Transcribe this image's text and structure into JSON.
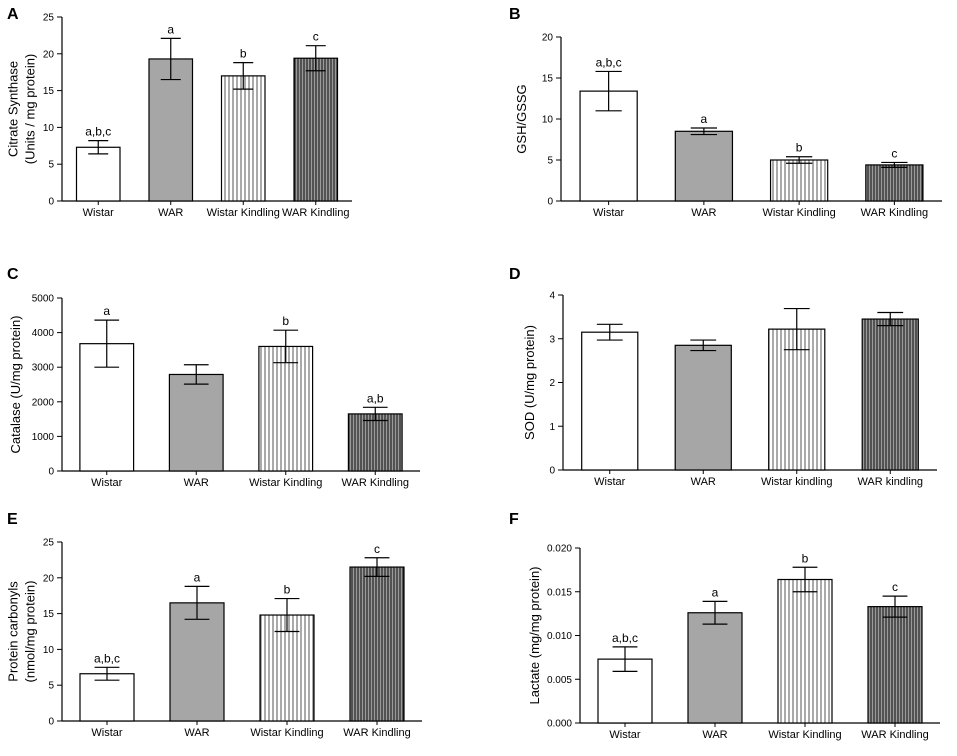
{
  "chart_data": [
    {
      "type": "bar",
      "panel": "A",
      "categories": [
        "Wistar",
        "WAR",
        "Wistar Kindling",
        "WAR Kindling"
      ],
      "values": [
        7.3,
        19.3,
        17.0,
        19.4
      ],
      "errors": [
        0.9,
        2.8,
        1.8,
        1.7
      ],
      "annotations": [
        "a,b,c",
        "a",
        "b",
        "c"
      ],
      "ylabel_lines": [
        "Citrate Synthase",
        "(Units / mg protein)"
      ],
      "ylim": [
        0,
        25
      ],
      "yticks": [
        "0",
        "5",
        "10",
        "15",
        "20",
        "25"
      ]
    },
    {
      "type": "bar",
      "panel": "B",
      "categories": [
        "Wistar",
        "WAR",
        "Wistar Kindling",
        "WAR Kindling"
      ],
      "values": [
        13.4,
        8.5,
        5.0,
        4.4
      ],
      "errors": [
        2.4,
        0.4,
        0.4,
        0.3
      ],
      "annotations": [
        "a,b,c",
        "a",
        "b",
        "c"
      ],
      "ylabel_lines": [
        "GSH/GSSG"
      ],
      "ylim": [
        0,
        20
      ],
      "yticks": [
        "0",
        "5",
        "10",
        "15",
        "20"
      ]
    },
    {
      "type": "bar",
      "panel": "C",
      "categories": [
        "Wistar",
        "WAR",
        "Wistar Kindling",
        "WAR Kindling"
      ],
      "values": [
        3680,
        2790,
        3600,
        1650
      ],
      "errors": [
        680,
        280,
        470,
        190
      ],
      "annotations": [
        "a",
        "",
        "b",
        "a,b"
      ],
      "ylabel_lines": [
        "Catalase (U/mg protein)"
      ],
      "ylim": [
        0,
        5000
      ],
      "yticks": [
        "0",
        "1000",
        "2000",
        "3000",
        "4000",
        "5000"
      ]
    },
    {
      "type": "bar",
      "panel": "D",
      "categories": [
        "Wistar",
        "WAR",
        "Wistar kindling",
        "WAR kindling"
      ],
      "values": [
        3.15,
        2.85,
        3.22,
        3.45
      ],
      "errors": [
        0.18,
        0.12,
        0.47,
        0.15
      ],
      "annotations": [
        "",
        "",
        "",
        ""
      ],
      "ylabel_lines": [
        "SOD (U/mg protein)"
      ],
      "ylim": [
        0,
        4
      ],
      "yticks": [
        "0",
        "1",
        "2",
        "3",
        "4"
      ]
    },
    {
      "type": "bar",
      "panel": "E",
      "categories": [
        "Wistar",
        "WAR",
        "Wistar Kindling",
        "WAR Kindling"
      ],
      "values": [
        6.6,
        16.5,
        14.8,
        21.5
      ],
      "errors": [
        0.9,
        2.3,
        2.3,
        1.3
      ],
      "annotations": [
        "a,b,c",
        "a",
        "b",
        "c"
      ],
      "ylabel_lines": [
        "Protein carbonyls",
        "(nmol/mg protein)"
      ],
      "ylim": [
        0,
        25
      ],
      "yticks": [
        "0",
        "5",
        "10",
        "15",
        "20",
        "25"
      ]
    },
    {
      "type": "bar",
      "panel": "F",
      "categories": [
        "Wistar",
        "WAR",
        "Wistar Kindling",
        "WAR Kindling"
      ],
      "values": [
        0.0073,
        0.0126,
        0.0164,
        0.0133
      ],
      "errors": [
        0.0014,
        0.0013,
        0.0014,
        0.0012
      ],
      "annotations": [
        "a,b,c",
        "a",
        "b",
        "c"
      ],
      "ylabel_lines": [
        "Lactate (mg/mg protein)"
      ],
      "ylim": [
        0,
        0.02
      ],
      "yticks": [
        "0.000",
        "0.005",
        "0.010",
        "0.015",
        "0.020"
      ]
    }
  ],
  "colors": {
    "wistar_fill": "#ffffff",
    "war_fill": "#a6a6a6",
    "wistar_kindling_stripe": "#555555",
    "war_kindling_stripe": "#222222",
    "war_kindling_bg": "#9a9a9a",
    "stroke": "#000000"
  }
}
